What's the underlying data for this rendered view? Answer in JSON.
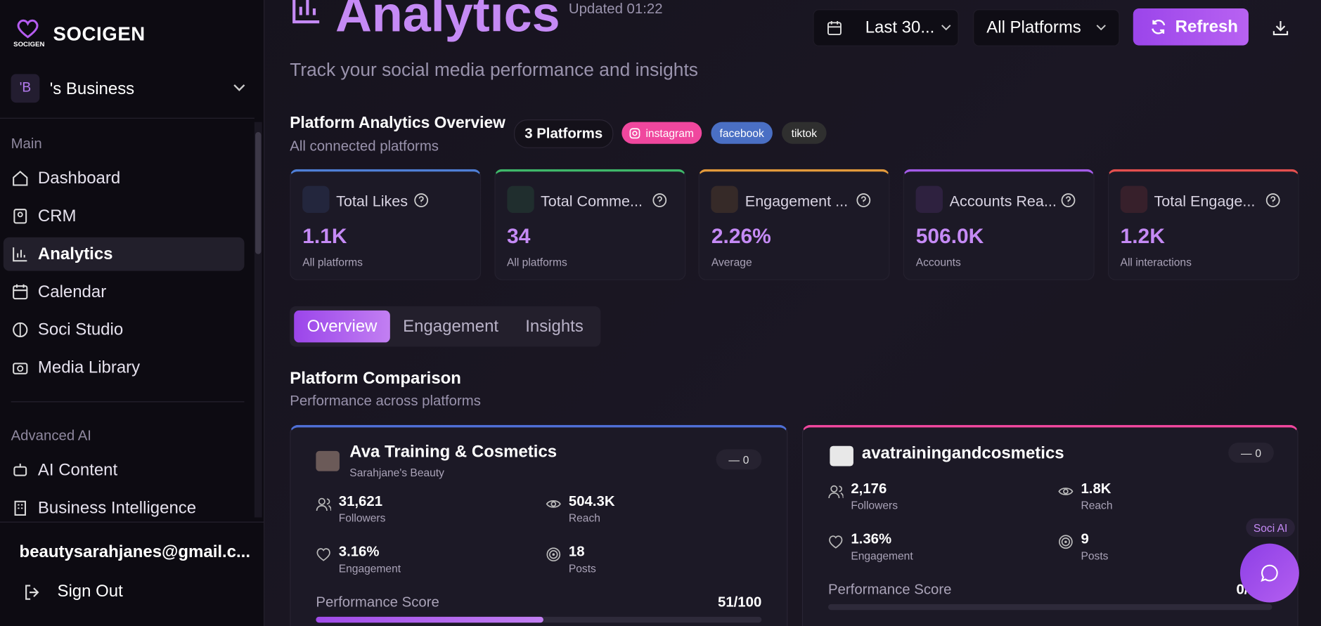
{
  "sidebar": {
    "brand": "SOCIGEN",
    "logo_caption": "SOCIGEN",
    "workspace": {
      "initials": "'B",
      "name": "'s Business"
    },
    "sections": [
      {
        "title": "Main",
        "items": [
          "Dashboard",
          "CRM",
          "Analytics",
          "Calendar",
          "Soci Studio",
          "Media Library"
        ]
      },
      {
        "title": "Advanced AI",
        "items": [
          "AI Content",
          "Business Intelligence"
        ]
      }
    ],
    "user_email": "beautysarahjanes@gmail.c...",
    "sign_out": "Sign Out"
  },
  "header": {
    "title": "Analytics",
    "updated": "Updated 01:22",
    "subtitle": "Track your social media performance and insights",
    "date_range": "Last 30...",
    "platform_filter": "All Platforms",
    "refresh": "Refresh"
  },
  "overview": {
    "title": "Platform Analytics Overview",
    "subtitle": "All connected platforms",
    "platform_count": "3 Platforms",
    "platforms": [
      {
        "name": "instagram",
        "color": "#f0479e"
      },
      {
        "name": "facebook",
        "color": "#4a6fc4"
      },
      {
        "name": "tiktok",
        "color": "#2f2f2f"
      }
    ]
  },
  "metrics": [
    {
      "label": "Total Likes",
      "value": "1.1K",
      "note": "All platforms",
      "color": "#4f7fd6"
    },
    {
      "label": "Total Comme...",
      "value": "34",
      "note": "All platforms",
      "color": "#3fb86a"
    },
    {
      "label": "Engagement ...",
      "value": "2.26%",
      "note": "Average",
      "color": "#e39a3b"
    },
    {
      "label": "Accounts Rea...",
      "value": "506.0K",
      "note": "Accounts",
      "color": "#a45be8"
    },
    {
      "label": "Total Engage...",
      "value": "1.2K",
      "note": "All interactions",
      "color": "#e5504f"
    }
  ],
  "tabs": [
    "Overview",
    "Engagement",
    "Insights"
  ],
  "comparison": {
    "title": "Platform Comparison",
    "subtitle": "Performance across platforms",
    "cards": [
      {
        "name": "Ava Training & Cosmetics",
        "handle": "Sarahjane's Beauty",
        "change": "0",
        "color": "#4f6fd6",
        "stats": [
          {
            "value": "31,621",
            "label": "Followers"
          },
          {
            "value": "504.3K",
            "label": "Reach"
          },
          {
            "value": "3.16%",
            "label": "Engagement"
          },
          {
            "value": "18",
            "label": "Posts"
          }
        ],
        "score_label": "Performance Score",
        "score_text": "51/100",
        "score": 51,
        "score_max": 100
      },
      {
        "name": "avatrainingandcosmetics",
        "change": "0",
        "color": "#f0479e",
        "stats": [
          {
            "value": "2,176",
            "label": "Followers"
          },
          {
            "value": "1.8K",
            "label": "Reach"
          },
          {
            "value": "1.36%",
            "label": "Engagement"
          },
          {
            "value": "9",
            "label": "Posts"
          }
        ],
        "score_label": "Performance Score",
        "score_text": "0/100",
        "score": 0,
        "score_max": 100
      }
    ]
  },
  "assistant_label": "Soci AI"
}
